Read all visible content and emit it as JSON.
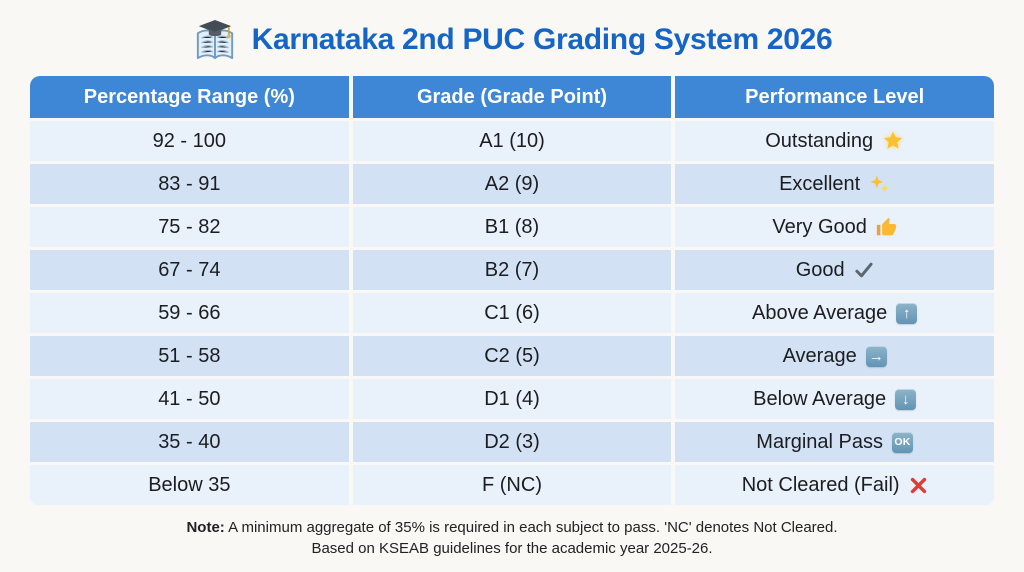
{
  "title": {
    "text": "Karnataka 2nd PUC Grading System 2026",
    "icon": "book-graduation-cap"
  },
  "table": {
    "headers": [
      "Percentage Range (%)",
      "Grade (Grade Point)",
      "Performance Level"
    ],
    "rows": [
      {
        "range": "92 - 100",
        "grade": "A1 (10)",
        "performance": "Outstanding",
        "icon": "glowing-star"
      },
      {
        "range": "83 - 91",
        "grade": "A2 (9)",
        "performance": "Excellent",
        "icon": "sparkles"
      },
      {
        "range": "75 - 82",
        "grade": "B1 (8)",
        "performance": "Very Good",
        "icon": "thumbs-up"
      },
      {
        "range": "67 - 74",
        "grade": "B2 (7)",
        "performance": "Good",
        "icon": "check-mark"
      },
      {
        "range": "59 - 66",
        "grade": "C1 (6)",
        "performance": "Above Average",
        "icon": "up-arrow-badge"
      },
      {
        "range": "51 - 58",
        "grade": "C2 (5)",
        "performance": "Average",
        "icon": "right-arrow-badge"
      },
      {
        "range": "41 - 50",
        "grade": "D1 (4)",
        "performance": "Below Average",
        "icon": "down-arrow-badge"
      },
      {
        "range": "35 - 40",
        "grade": "D2 (3)",
        "performance": "Marginal Pass",
        "icon": "ok-badge"
      },
      {
        "range": "Below 35",
        "grade": "F (NC)",
        "performance": "Not Cleared (Fail)",
        "icon": "cross-mark"
      }
    ]
  },
  "note": {
    "label": "Note:",
    "line1": " A minimum aggregate of 35% is required in each subject to pass. 'NC' denotes Not Cleared.",
    "line2": "Based on KSEAB guidelines for the academic year 2025-26."
  },
  "colors": {
    "title_blue": "#1565c6",
    "header_blue": "#3e87d7",
    "row_light": "#e9f1fb",
    "row_dark": "#d2e2f4",
    "badge_steel_blue": "#6d9dbd",
    "star_yellow": "#fbc02d",
    "check_gray": "#5c6670",
    "cross_red": "#e23b35",
    "cell_text": "#1c1d20"
  },
  "chart_data": {
    "type": "table",
    "title": "Karnataka 2nd PUC Grading System 2026",
    "columns": [
      "Percentage Range (%)",
      "Grade (Grade Point)",
      "Performance Level"
    ],
    "rows": [
      [
        "92 - 100",
        "A1 (10)",
        "Outstanding"
      ],
      [
        "83 - 91",
        "A2 (9)",
        "Excellent"
      ],
      [
        "75 - 82",
        "B1 (8)",
        "Very Good"
      ],
      [
        "67 - 74",
        "B2 (7)",
        "Good"
      ],
      [
        "59 - 66",
        "C1 (6)",
        "Above Average"
      ],
      [
        "51 - 58",
        "C2 (5)",
        "Average"
      ],
      [
        "41 - 50",
        "D1 (4)",
        "Below Average"
      ],
      [
        "35 - 40",
        "D2 (3)",
        "Marginal Pass"
      ],
      [
        "Below 35",
        "F (NC)",
        "Not Cleared (Fail)"
      ]
    ],
    "footnote": "Note: A minimum aggregate of 35% is required in each subject to pass. 'NC' denotes Not Cleared. Based on KSEAB guidelines for the academic year 2025-26."
  }
}
